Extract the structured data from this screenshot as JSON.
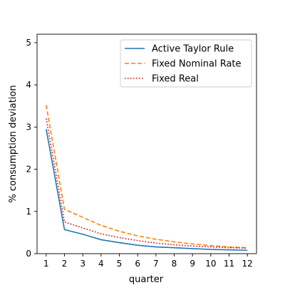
{
  "chart_data": {
    "type": "line",
    "title": "",
    "xlabel": "quarter",
    "ylabel": "% consumption deviation",
    "x": [
      1,
      2,
      3,
      4,
      5,
      6,
      7,
      8,
      9,
      10,
      11,
      12
    ],
    "xticks": [
      "1",
      "2",
      "3",
      "4",
      "5",
      "6",
      "7",
      "8",
      "9",
      "10",
      "11",
      "12"
    ],
    "yticks": [
      "0",
      "1",
      "2",
      "3",
      "4",
      "5"
    ],
    "xlim": [
      0.5,
      12.5
    ],
    "ylim": [
      0,
      5.2
    ],
    "grid": false,
    "legend_position": "top-right",
    "series": [
      {
        "name": "Active Taylor Rule",
        "color": "#1f77b4",
        "style": "solid",
        "values": [
          2.95,
          0.57,
          0.46,
          0.33,
          0.26,
          0.2,
          0.16,
          0.14,
          0.12,
          0.1,
          0.09,
          0.08
        ]
      },
      {
        "name": "Fixed Nominal Rate",
        "color": "#ff7f0e",
        "style": "dashed",
        "values": [
          3.52,
          1.05,
          0.86,
          0.67,
          0.53,
          0.42,
          0.34,
          0.28,
          0.23,
          0.19,
          0.16,
          0.14
        ]
      },
      {
        "name": "Fixed Real",
        "color": "#d00000",
        "style": "dotted",
        "values": [
          3.2,
          0.75,
          0.61,
          0.47,
          0.38,
          0.31,
          0.25,
          0.21,
          0.18,
          0.16,
          0.14,
          0.13
        ]
      }
    ]
  }
}
